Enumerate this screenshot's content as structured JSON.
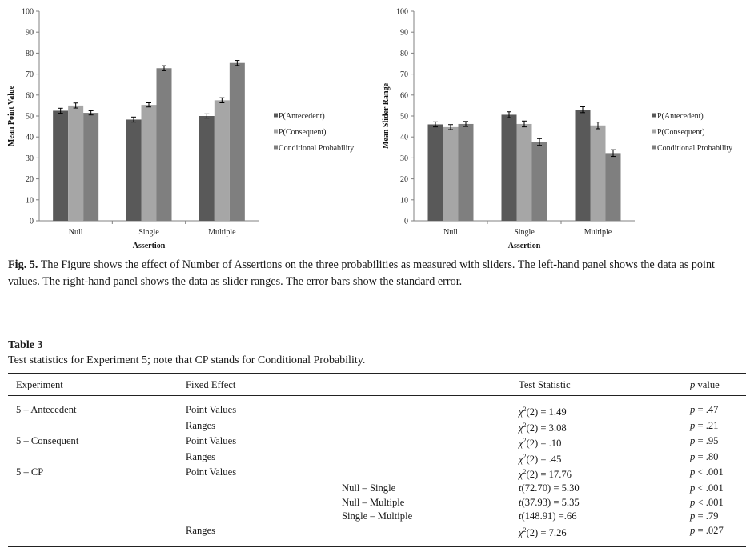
{
  "figure": {
    "chart_data": [
      {
        "type": "bar",
        "ylabel": "Mean Point Value",
        "xlabel": "Assertion",
        "ylim": [
          0,
          100
        ],
        "yticks": [
          0,
          10,
          20,
          30,
          40,
          50,
          60,
          70,
          80,
          90,
          100
        ],
        "categories": [
          "Null",
          "Single",
          "Multiple"
        ],
        "legend_position": "right",
        "grid": false,
        "series": [
          {
            "name": "P(Antecedent)",
            "color": "#595959",
            "values": [
              52.5,
              48.3,
              50.0
            ],
            "errors": [
              1.2,
              1.2,
              1.0
            ]
          },
          {
            "name": "P(Consequent)",
            "color": "#a6a6a6",
            "values": [
              55.0,
              55.3,
              57.5
            ],
            "errors": [
              1.2,
              1.0,
              1.2
            ]
          },
          {
            "name": "Conditional Probability",
            "color": "#7f7f7f",
            "values": [
              51.5,
              72.8,
              75.3
            ],
            "errors": [
              1.0,
              1.2,
              1.2
            ]
          }
        ]
      },
      {
        "type": "bar",
        "ylabel": "Mean Slider Range",
        "xlabel": "Assertion",
        "ylim": [
          0,
          100
        ],
        "yticks": [
          0,
          10,
          20,
          30,
          40,
          50,
          60,
          70,
          80,
          90,
          100
        ],
        "categories": [
          "Null",
          "Single",
          "Multiple"
        ],
        "legend_position": "right",
        "grid": false,
        "series": [
          {
            "name": "P(Antecedent)",
            "color": "#595959",
            "values": [
              46.0,
              50.6,
              53.0
            ],
            "errors": [
              1.2,
              1.4,
              1.4
            ]
          },
          {
            "name": "P(Consequent)",
            "color": "#a6a6a6",
            "values": [
              44.7,
              46.2,
              45.5
            ],
            "errors": [
              1.2,
              1.4,
              1.6
            ]
          },
          {
            "name": "Conditional Probability",
            "color": "#7f7f7f",
            "values": [
              46.2,
              37.6,
              32.3
            ],
            "errors": [
              1.2,
              1.6,
              1.6
            ]
          }
        ]
      }
    ],
    "caption_label": "Fig. 5.",
    "caption_text": "The Figure shows the effect of Number of Assertions on the three probabilities as measured with sliders. The left-hand panel shows the data as point values. The right-hand panel shows the data as slider ranges. The error bars show the standard error."
  },
  "table": {
    "label": "Table 3",
    "caption": "Test statistics for Experiment 5; note that CP stands for Conditional Probability.",
    "headers": {
      "experiment": "Experiment",
      "fixed_effect": "Fixed Effect",
      "test_statistic": "Test Statistic",
      "p_letter": "p",
      "p_value": "value"
    },
    "rows": [
      {
        "experiment": "5 – Antecedent",
        "fixed_effect": "Point Values",
        "contrast": "",
        "sym": "χ",
        "sup": "2",
        "stat": "(2) = 1.49",
        "pp": "p",
        "pv": "= .47"
      },
      {
        "experiment": "",
        "fixed_effect": "Ranges",
        "contrast": "",
        "sym": "χ",
        "sup": "2",
        "stat": "(2) = 3.08",
        "pp": "p",
        "pv": "= .21"
      },
      {
        "experiment": "5 – Consequent",
        "fixed_effect": "Point Values",
        "contrast": "",
        "sym": "χ",
        "sup": "2",
        "stat": "(2) = .10",
        "pp": "p",
        "pv": "= .95"
      },
      {
        "experiment": "",
        "fixed_effect": "Ranges",
        "contrast": "",
        "sym": "χ",
        "sup": "2",
        "stat": "(2) = .45",
        "pp": "p",
        "pv": "= .80"
      },
      {
        "experiment": "5 – CP",
        "fixed_effect": "Point Values",
        "contrast": "",
        "sym": "χ",
        "sup": "2",
        "stat": "(2) = 17.76",
        "pp": "p",
        "pv": "< .001"
      },
      {
        "experiment": "",
        "fixed_effect": "",
        "contrast": "Null – Single",
        "sym": "t",
        "sup": "",
        "stat": "(72.70) = 5.30",
        "pp": "p",
        "pv": "< .001"
      },
      {
        "experiment": "",
        "fixed_effect": "",
        "contrast": "Null – Multiple",
        "sym": "t",
        "sup": "",
        "stat": "(37.93) = 5.35",
        "pp": "p",
        "pv": "< .001"
      },
      {
        "experiment": "",
        "fixed_effect": "",
        "contrast": "Single – Multiple",
        "sym": "t",
        "sup": "",
        "stat": "(148.91) =.66",
        "pp": "p",
        "pv": "= .79"
      },
      {
        "experiment": "",
        "fixed_effect": "Ranges",
        "contrast": "",
        "sym": "χ",
        "sup": "2",
        "stat": "(2) = 7.26",
        "pp": "p",
        "pv": "= .027"
      }
    ]
  }
}
